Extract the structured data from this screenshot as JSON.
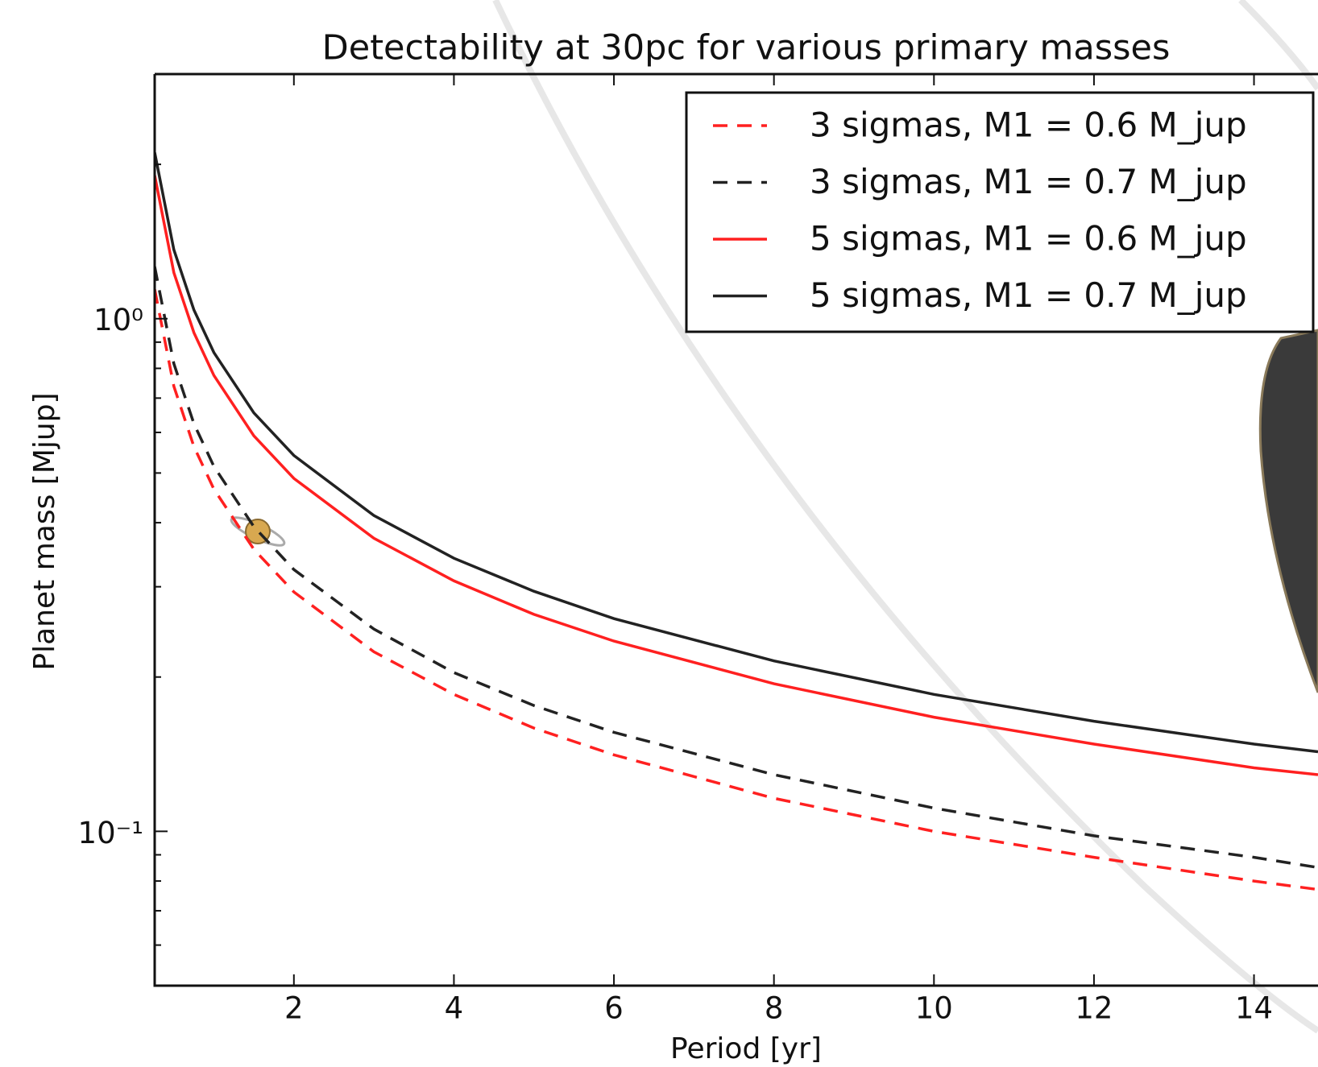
{
  "chart_data": {
    "type": "line",
    "title": "Detectability at 30pc for various primary masses",
    "xlabel": "Period [yr]",
    "ylabel": "Planet mass [Mjup]",
    "x": [
      0.26,
      0.5,
      0.75,
      1,
      1.5,
      2,
      3,
      4,
      5,
      6,
      8,
      10,
      12,
      14,
      14.8
    ],
    "series": [
      {
        "name": "3 sigmas, M1 = 0.6 M_jup",
        "color": "#ff2020",
        "dash": true,
        "values": [
          1.141,
          0.738,
          0.563,
          0.465,
          0.355,
          0.293,
          0.224,
          0.185,
          0.159,
          0.141,
          0.116,
          0.1,
          0.089,
          0.08,
          0.077
        ]
      },
      {
        "name": "3 sigmas, M1 = 0.7 M_jup",
        "color": "#222222",
        "dash": true,
        "values": [
          1.264,
          0.817,
          0.624,
          0.515,
          0.393,
          0.324,
          0.248,
          0.204,
          0.176,
          0.156,
          0.129,
          0.111,
          0.098,
          0.089,
          0.085
        ]
      },
      {
        "name": "5 sigmas, M1 = 0.6 M_jup",
        "color": "#ff2020",
        "dash": false,
        "values": [
          1.903,
          1.23,
          0.939,
          0.775,
          0.591,
          0.488,
          0.373,
          0.308,
          0.265,
          0.235,
          0.194,
          0.167,
          0.148,
          0.133,
          0.129
        ]
      },
      {
        "name": "5 sigmas, M1 = 0.7 M_jup",
        "color": "#222222",
        "dash": false,
        "values": [
          2.11,
          1.363,
          1.04,
          0.859,
          0.655,
          0.541,
          0.413,
          0.341,
          0.294,
          0.26,
          0.215,
          0.185,
          0.164,
          0.148,
          0.143
        ]
      }
    ],
    "xlim": [
      0.26,
      14.8
    ],
    "xticks": [
      2,
      4,
      6,
      8,
      10,
      12,
      14
    ],
    "ylim": [
      0.05,
      3
    ],
    "ylog": true,
    "yticks": [
      {
        "value": 0.1,
        "label": "10⁻¹"
      },
      {
        "value": 1,
        "label": "10⁰"
      }
    ],
    "yminorticks": [
      0.06,
      0.07,
      0.08,
      0.09,
      0.2,
      0.3,
      0.4,
      0.5,
      0.6,
      0.7,
      0.8,
      0.9,
      2
    ],
    "legend": "upper right"
  }
}
